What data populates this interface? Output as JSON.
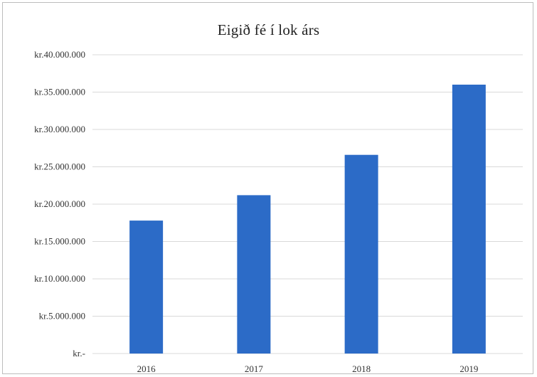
{
  "chart_data": {
    "type": "bar",
    "title": "Eigið  fé í lok árs",
    "xlabel": "",
    "ylabel": "",
    "categories": [
      "2016",
      "2017",
      "2018",
      "2019"
    ],
    "values": [
      17800000,
      21200000,
      26600000,
      36000000
    ],
    "ylim": [
      0,
      40000000
    ],
    "yticks": [
      0,
      5000000,
      10000000,
      15000000,
      20000000,
      25000000,
      30000000,
      35000000,
      40000000
    ],
    "ytick_labels": [
      "kr.-",
      "kr.5.000.000",
      "kr.10.000.000",
      "kr.15.000.000",
      "kr.20.000.000",
      "kr.25.000.000",
      "kr.30.000.000",
      "kr.35.000.000",
      "kr.40.000.000"
    ],
    "grid": true,
    "legend": "none",
    "bar_color": "#2c6bc7",
    "grid_color": "#d9d9d9"
  }
}
